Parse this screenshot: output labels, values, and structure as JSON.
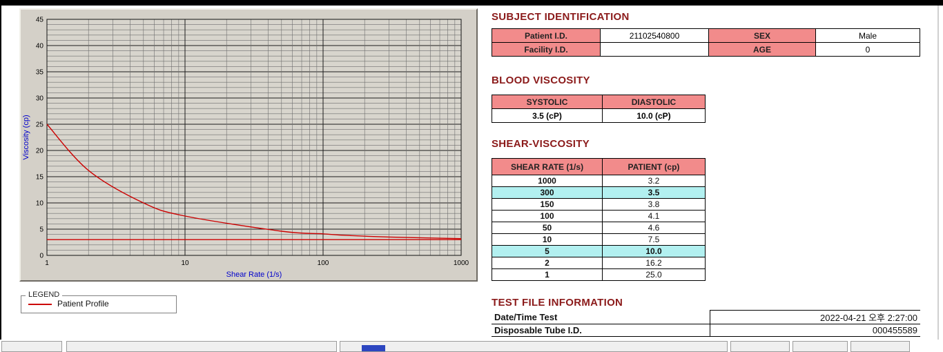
{
  "colors": {
    "heading": "#8b1a1a",
    "table_header_bg": "#f28b8b",
    "highlight_bg": "#b2f0f0",
    "series_line": "#cc0000",
    "axis_label": "#0000cc",
    "panel_bg": "#d4d0c8",
    "plot_bg": "#d8d5cd",
    "top_bar": "#000000"
  },
  "legend": {
    "box_label": "LEGEND",
    "series_label": "Patient Profile"
  },
  "subject_identification": {
    "title": "SUBJECT IDENTIFICATION",
    "rows": [
      {
        "label1": "Patient I.D.",
        "value1": "21102540800",
        "label2": "SEX",
        "value2": "Male"
      },
      {
        "label1": "Facility I.D.",
        "value1": "",
        "label2": "AGE",
        "value2": "0"
      }
    ]
  },
  "blood_viscosity": {
    "title": "BLOOD VISCOSITY",
    "headers": [
      "SYSTOLIC",
      "DIASTOLIC"
    ],
    "values": [
      "3.5 (cP)",
      "10.0 (cP)"
    ]
  },
  "shear_viscosity": {
    "title": "SHEAR-VISCOSITY",
    "headers": [
      "SHEAR RATE (1/s)",
      "PATIENT (cp)"
    ],
    "rows": [
      {
        "shear_rate": "1000",
        "patient": "3.2",
        "highlight": false
      },
      {
        "shear_rate": "300",
        "patient": "3.5",
        "highlight": true
      },
      {
        "shear_rate": "150",
        "patient": "3.8",
        "highlight": false
      },
      {
        "shear_rate": "100",
        "patient": "4.1",
        "highlight": false
      },
      {
        "shear_rate": "50",
        "patient": "4.6",
        "highlight": false
      },
      {
        "shear_rate": "10",
        "patient": "7.5",
        "highlight": false
      },
      {
        "shear_rate": "5",
        "patient": "10.0",
        "highlight": true
      },
      {
        "shear_rate": "2",
        "patient": "16.2",
        "highlight": false
      },
      {
        "shear_rate": "1",
        "patient": "25.0",
        "highlight": false
      }
    ]
  },
  "test_file_information": {
    "title": "TEST FILE INFORMATION",
    "rows": [
      {
        "label": "Date/Time Test",
        "value": "2022-04-21   오후 2:27:00"
      },
      {
        "label": "Disposable Tube I.D.",
        "value": "000455589"
      }
    ]
  },
  "chart_data": {
    "type": "line",
    "title": "",
    "xlabel": "Shear Rate (1/s)",
    "ylabel": "Viscosity (cp)",
    "x_scale": "log",
    "xlim": [
      1,
      1000
    ],
    "ylim": [
      0,
      45
    ],
    "x_major_ticks": [
      1,
      10,
      100,
      1000
    ],
    "y_major_ticks": [
      0,
      5,
      10,
      15,
      20,
      25,
      30,
      35,
      40,
      45
    ],
    "grid": true,
    "legend_position": "below-left",
    "series": [
      {
        "name": "Patient Profile",
        "color": "#cc0000",
        "x": [
          1,
          2,
          5,
          10,
          50,
          100,
          150,
          300,
          1000
        ],
        "y": [
          25.0,
          16.2,
          10.0,
          7.5,
          4.6,
          4.1,
          3.8,
          3.5,
          3.2
        ]
      },
      {
        "name": "reference-line",
        "color": "#cc0000",
        "x": [
          1,
          1000
        ],
        "y": [
          3.0,
          3.0
        ]
      }
    ]
  }
}
